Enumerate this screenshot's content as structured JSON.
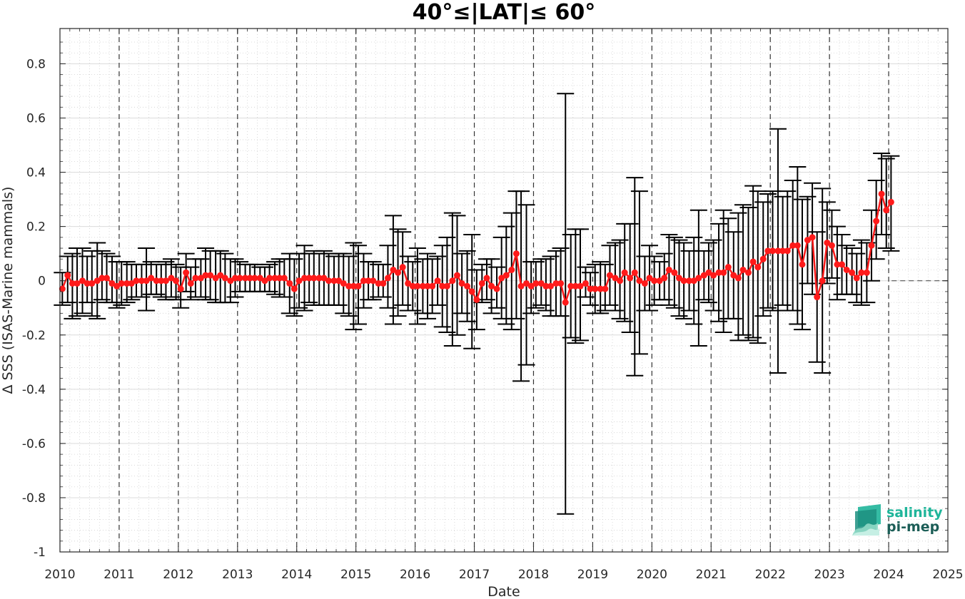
{
  "chart_data": {
    "type": "line",
    "title": "40°≤|LAT|≤ 60°",
    "xlabel": "Date",
    "ylabel": "Δ SSS (ISAS-Marine mammals)",
    "xlim": [
      2010,
      2025
    ],
    "ylim": [
      -1,
      0.93
    ],
    "x_ticks": [
      "2010",
      "2011",
      "2012",
      "2013",
      "2014",
      "2015",
      "2016",
      "2017",
      "2018",
      "2019",
      "2020",
      "2021",
      "2022",
      "2023",
      "2024",
      "2025"
    ],
    "y_ticks": [
      "0.8",
      "0.6",
      "0.4",
      "0.2",
      "0",
      "-0.2",
      "-0.4",
      "-0.6",
      "-0.8",
      "-1"
    ],
    "grid": true,
    "year_separators": "dashed vertical lines at each year",
    "zero_line": "dashed horizontal line at 0 after 2024",
    "series": [
      {
        "style": "red line with circle markers, black error bars",
        "color": "#ff1a1a",
        "points": [
          [
            2010.04,
            -0.03,
            -0.09,
            0.03
          ],
          [
            2010.13,
            0.02,
            -0.08,
            0.09
          ],
          [
            2010.21,
            -0.01,
            -0.14,
            0.1
          ],
          [
            2010.29,
            -0.01,
            -0.13,
            0.12
          ],
          [
            2010.38,
            0.0,
            -0.12,
            0.12
          ],
          [
            2010.46,
            -0.01,
            -0.08,
            0.09
          ],
          [
            2010.54,
            -0.01,
            -0.13,
            0.11
          ],
          [
            2010.63,
            0.0,
            -0.14,
            0.14
          ],
          [
            2010.71,
            0.01,
            -0.07,
            0.11
          ],
          [
            2010.79,
            0.01,
            -0.08,
            0.1
          ],
          [
            2010.88,
            -0.01,
            -0.08,
            0.09
          ],
          [
            2010.96,
            -0.02,
            -0.1,
            0.07
          ],
          [
            2011.04,
            -0.01,
            -0.09,
            0.07
          ],
          [
            2011.13,
            -0.01,
            -0.08,
            0.07
          ],
          [
            2011.21,
            -0.01,
            -0.07,
            0.06
          ],
          [
            2011.29,
            0.0,
            -0.06,
            0.06
          ],
          [
            2011.38,
            0.0,
            -0.06,
            0.06
          ],
          [
            2011.46,
            0.0,
            -0.11,
            0.12
          ],
          [
            2011.54,
            0.01,
            -0.05,
            0.07
          ],
          [
            2011.63,
            0.0,
            -0.05,
            0.06
          ],
          [
            2011.71,
            0.0,
            -0.06,
            0.06
          ],
          [
            2011.79,
            0.0,
            -0.07,
            0.07
          ],
          [
            2011.88,
            0.01,
            -0.06,
            0.08
          ],
          [
            2011.96,
            0.0,
            -0.07,
            0.06
          ],
          [
            2012.04,
            -0.03,
            -0.1,
            0.05
          ],
          [
            2012.13,
            0.03,
            -0.04,
            0.1
          ],
          [
            2012.21,
            -0.01,
            -0.07,
            0.05
          ],
          [
            2012.29,
            0.01,
            -0.06,
            0.08
          ],
          [
            2012.38,
            0.01,
            -0.06,
            0.08
          ],
          [
            2012.46,
            0.02,
            -0.07,
            0.12
          ],
          [
            2012.54,
            0.02,
            -0.07,
            0.11
          ],
          [
            2012.63,
            0.01,
            -0.08,
            0.11
          ],
          [
            2012.71,
            0.02,
            -0.08,
            0.11
          ],
          [
            2012.79,
            0.01,
            -0.08,
            0.1
          ],
          [
            2012.88,
            0.0,
            -0.08,
            0.08
          ],
          [
            2012.96,
            0.01,
            -0.06,
            0.08
          ],
          [
            2013.04,
            0.01,
            -0.04,
            0.07
          ],
          [
            2013.13,
            0.01,
            -0.04,
            0.06
          ],
          [
            2013.21,
            0.01,
            -0.04,
            0.06
          ],
          [
            2013.29,
            0.01,
            -0.04,
            0.06
          ],
          [
            2013.38,
            0.01,
            -0.04,
            0.05
          ],
          [
            2013.46,
            0.0,
            -0.04,
            0.05
          ],
          [
            2013.54,
            0.01,
            -0.04,
            0.06
          ],
          [
            2013.63,
            0.01,
            -0.05,
            0.07
          ],
          [
            2013.71,
            0.01,
            -0.06,
            0.08
          ],
          [
            2013.79,
            0.01,
            -0.06,
            0.08
          ],
          [
            2013.88,
            -0.01,
            -0.12,
            0.1
          ],
          [
            2013.96,
            -0.03,
            -0.13,
            0.08
          ],
          [
            2014.04,
            0.0,
            -0.1,
            0.1
          ],
          [
            2014.13,
            0.01,
            -0.11,
            0.13
          ],
          [
            2014.21,
            0.01,
            -0.08,
            0.1
          ],
          [
            2014.29,
            0.01,
            -0.09,
            0.11
          ],
          [
            2014.38,
            0.01,
            -0.09,
            0.1
          ],
          [
            2014.46,
            0.01,
            -0.09,
            0.11
          ],
          [
            2014.54,
            0.0,
            -0.09,
            0.1
          ],
          [
            2014.63,
            0.0,
            -0.09,
            0.09
          ],
          [
            2014.71,
            0.0,
            -0.09,
            0.1
          ],
          [
            2014.79,
            -0.01,
            -0.12,
            0.1
          ],
          [
            2014.88,
            -0.02,
            -0.13,
            0.09
          ],
          [
            2014.96,
            -0.02,
            -0.18,
            0.14
          ],
          [
            2015.04,
            -0.02,
            -0.16,
            0.13
          ],
          [
            2015.13,
            0.0,
            -0.1,
            0.1
          ],
          [
            2015.21,
            0.0,
            -0.07,
            0.07
          ],
          [
            2015.29,
            0.0,
            -0.07,
            0.07
          ],
          [
            2015.38,
            -0.01,
            -0.06,
            0.06
          ],
          [
            2015.46,
            -0.01,
            -0.06,
            0.06
          ],
          [
            2015.54,
            0.01,
            -0.1,
            0.13
          ],
          [
            2015.63,
            0.04,
            -0.16,
            0.24
          ],
          [
            2015.71,
            0.03,
            -0.13,
            0.19
          ],
          [
            2015.79,
            0.05,
            -0.09,
            0.18
          ],
          [
            2015.88,
            -0.01,
            -0.11,
            0.09
          ],
          [
            2015.96,
            -0.02,
            -0.11,
            0.07
          ],
          [
            2016.04,
            -0.02,
            -0.16,
            0.12
          ],
          [
            2016.13,
            -0.02,
            -0.12,
            0.08
          ],
          [
            2016.21,
            -0.02,
            -0.14,
            0.1
          ],
          [
            2016.29,
            -0.02,
            -0.12,
            0.08
          ],
          [
            2016.38,
            0.0,
            -0.09,
            0.09
          ],
          [
            2016.46,
            -0.02,
            -0.17,
            0.13
          ],
          [
            2016.54,
            -0.02,
            -0.19,
            0.16
          ],
          [
            2016.63,
            0.0,
            -0.24,
            0.25
          ],
          [
            2016.71,
            0.02,
            -0.2,
            0.24
          ],
          [
            2016.79,
            -0.01,
            -0.12,
            0.1
          ],
          [
            2016.88,
            -0.02,
            -0.15,
            0.11
          ],
          [
            2016.96,
            -0.04,
            -0.25,
            0.17
          ],
          [
            2017.04,
            -0.07,
            -0.18,
            0.04
          ],
          [
            2017.13,
            -0.01,
            -0.08,
            0.06
          ],
          [
            2017.21,
            0.01,
            -0.07,
            0.08
          ],
          [
            2017.29,
            -0.02,
            -0.12,
            0.08
          ],
          [
            2017.38,
            -0.03,
            -0.1,
            0.05
          ],
          [
            2017.46,
            0.01,
            -0.14,
            0.16
          ],
          [
            2017.54,
            0.02,
            -0.16,
            0.2
          ],
          [
            2017.63,
            0.04,
            -0.18,
            0.25
          ],
          [
            2017.71,
            0.1,
            -0.14,
            0.33
          ],
          [
            2017.79,
            -0.02,
            -0.37,
            0.33
          ],
          [
            2017.88,
            -0.01,
            -0.31,
            0.28
          ],
          [
            2017.96,
            -0.02,
            -0.12,
            0.07
          ],
          [
            2018.04,
            -0.01,
            -0.1,
            0.07
          ],
          [
            2018.13,
            -0.01,
            -0.09,
            0.08
          ],
          [
            2018.21,
            -0.02,
            -0.11,
            0.08
          ],
          [
            2018.29,
            -0.02,
            -0.13,
            0.09
          ],
          [
            2018.38,
            -0.01,
            -0.13,
            0.11
          ],
          [
            2018.46,
            -0.01,
            -0.13,
            0.12
          ],
          [
            2018.54,
            -0.08,
            -0.86,
            0.69
          ],
          [
            2018.63,
            -0.02,
            -0.21,
            0.17
          ],
          [
            2018.71,
            -0.02,
            -0.23,
            0.19
          ],
          [
            2018.79,
            -0.02,
            -0.22,
            0.19
          ],
          [
            2018.88,
            -0.01,
            -0.06,
            0.05
          ],
          [
            2018.96,
            -0.03,
            -0.09,
            0.03
          ],
          [
            2019.04,
            -0.03,
            -0.12,
            0.06
          ],
          [
            2019.13,
            -0.03,
            -0.12,
            0.07
          ],
          [
            2019.21,
            -0.03,
            -0.11,
            0.06
          ],
          [
            2019.29,
            0.02,
            -0.09,
            0.13
          ],
          [
            2019.38,
            0.01,
            -0.11,
            0.14
          ],
          [
            2019.46,
            0.0,
            -0.14,
            0.15
          ],
          [
            2019.54,
            0.03,
            -0.15,
            0.21
          ],
          [
            2019.63,
            0.01,
            -0.19,
            0.21
          ],
          [
            2019.71,
            0.03,
            -0.35,
            0.38
          ],
          [
            2019.79,
            0.0,
            -0.27,
            0.33
          ],
          [
            2019.88,
            -0.01,
            -0.11,
            0.09
          ],
          [
            2019.96,
            0.01,
            -0.11,
            0.13
          ],
          [
            2020.04,
            0.0,
            -0.09,
            0.09
          ],
          [
            2020.13,
            0.0,
            -0.07,
            0.07
          ],
          [
            2020.21,
            0.01,
            -0.07,
            0.1
          ],
          [
            2020.29,
            0.04,
            -0.09,
            0.17
          ],
          [
            2020.38,
            0.03,
            -0.1,
            0.16
          ],
          [
            2020.46,
            0.01,
            -0.13,
            0.15
          ],
          [
            2020.54,
            0.0,
            -0.14,
            0.14
          ],
          [
            2020.63,
            0.0,
            -0.11,
            0.11
          ],
          [
            2020.71,
            0.0,
            -0.16,
            0.16
          ],
          [
            2020.79,
            0.01,
            -0.24,
            0.26
          ],
          [
            2020.88,
            0.02,
            -0.07,
            0.11
          ],
          [
            2020.96,
            0.03,
            -0.08,
            0.14
          ],
          [
            2021.04,
            0.02,
            -0.11,
            0.15
          ],
          [
            2021.13,
            0.03,
            -0.15,
            0.21
          ],
          [
            2021.21,
            0.03,
            -0.19,
            0.26
          ],
          [
            2021.29,
            0.05,
            -0.14,
            0.23
          ],
          [
            2021.38,
            0.02,
            -0.14,
            0.18
          ],
          [
            2021.46,
            0.01,
            -0.22,
            0.25
          ],
          [
            2021.54,
            0.04,
            -0.2,
            0.28
          ],
          [
            2021.63,
            0.03,
            -0.22,
            0.27
          ],
          [
            2021.71,
            0.07,
            -0.21,
            0.35
          ],
          [
            2021.79,
            0.05,
            -0.23,
            0.33
          ],
          [
            2021.88,
            0.08,
            -0.13,
            0.29
          ],
          [
            2021.96,
            0.11,
            -0.1,
            0.32
          ],
          [
            2022.04,
            0.11,
            -0.11,
            0.33
          ],
          [
            2022.13,
            0.11,
            -0.34,
            0.56
          ],
          [
            2022.21,
            0.11,
            -0.09,
            0.31
          ],
          [
            2022.29,
            0.11,
            -0.11,
            0.33
          ],
          [
            2022.38,
            0.13,
            -0.11,
            0.37
          ],
          [
            2022.46,
            0.13,
            -0.16,
            0.42
          ],
          [
            2022.54,
            0.06,
            -0.18,
            0.3
          ],
          [
            2022.63,
            0.15,
            -0.01,
            0.31
          ],
          [
            2022.71,
            0.16,
            -0.05,
            0.36
          ],
          [
            2022.79,
            -0.06,
            -0.3,
            0.18
          ],
          [
            2022.88,
            0.0,
            -0.34,
            0.34
          ],
          [
            2022.96,
            0.14,
            -0.01,
            0.29
          ],
          [
            2023.04,
            0.13,
            0.01,
            0.26
          ],
          [
            2023.13,
            0.06,
            -0.07,
            0.2
          ],
          [
            2023.21,
            0.06,
            -0.05,
            0.17
          ],
          [
            2023.29,
            0.04,
            -0.05,
            0.13
          ],
          [
            2023.38,
            0.03,
            -0.05,
            0.12
          ],
          [
            2023.46,
            0.01,
            -0.08,
            0.1
          ],
          [
            2023.54,
            0.03,
            -0.09,
            0.15
          ],
          [
            2023.63,
            0.03,
            -0.08,
            0.14
          ],
          [
            2023.71,
            0.13,
            0.0,
            0.26
          ],
          [
            2023.79,
            0.22,
            0.08,
            0.37
          ],
          [
            2023.88,
            0.32,
            0.17,
            0.47
          ],
          [
            2023.96,
            0.26,
            0.12,
            0.45
          ],
          [
            2024.04,
            0.29,
            0.11,
            0.46
          ]
        ],
        "point_format": [
          "x_decimal_year",
          "y",
          "y_low",
          "y_high"
        ]
      }
    ]
  },
  "logo": {
    "line1": "salinity",
    "line2": "pi-mep"
  }
}
